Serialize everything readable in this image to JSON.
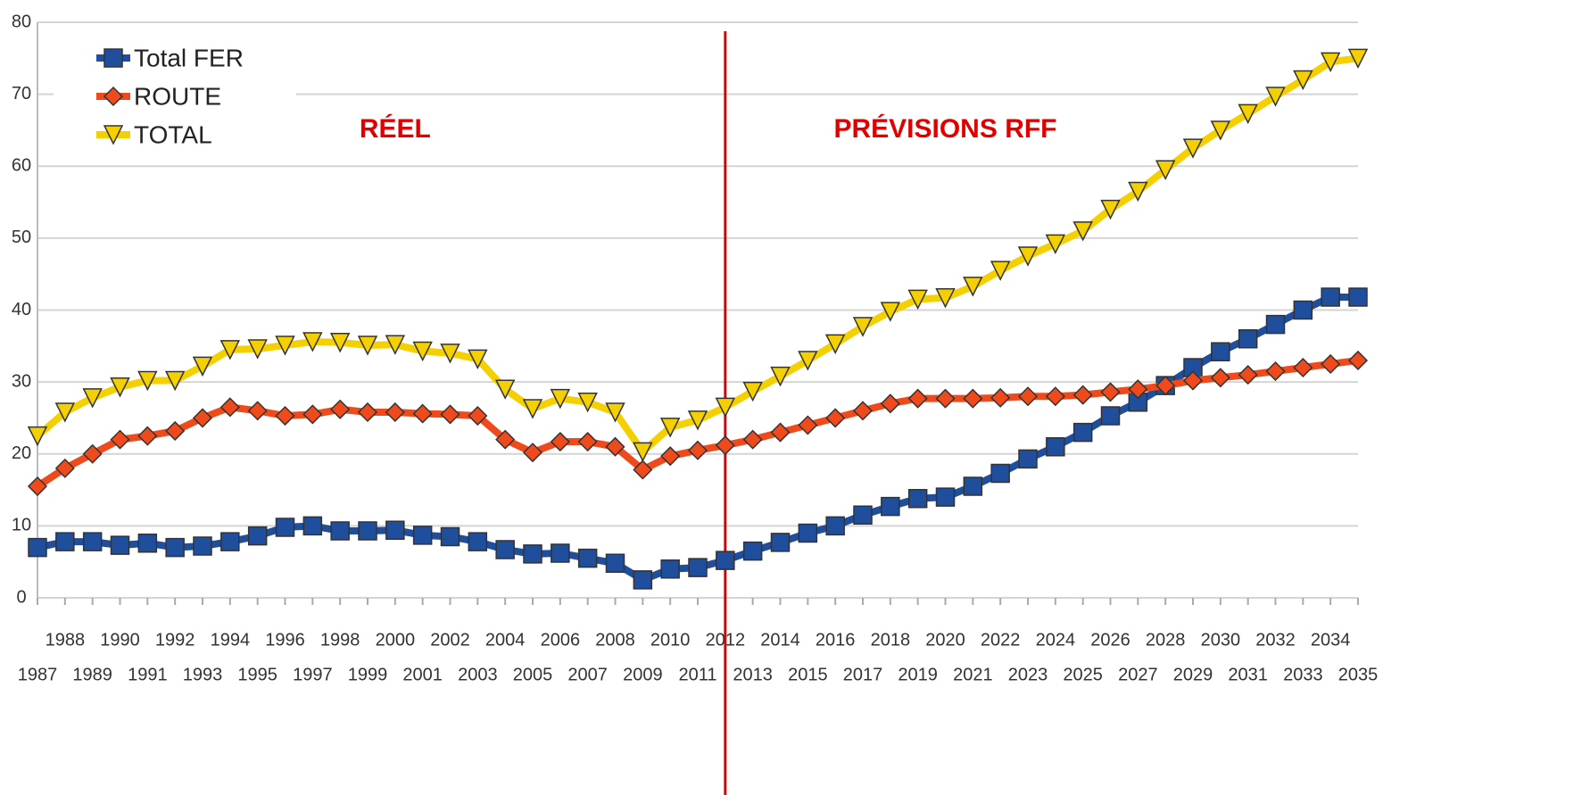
{
  "chart_data": {
    "type": "line",
    "x": [
      1987,
      1988,
      1989,
      1990,
      1991,
      1992,
      1993,
      1994,
      1995,
      1996,
      1997,
      1998,
      1999,
      2000,
      2001,
      2002,
      2003,
      2004,
      2005,
      2006,
      2007,
      2008,
      2009,
      2010,
      2011,
      2012,
      2013,
      2014,
      2015,
      2016,
      2017,
      2018,
      2019,
      2020,
      2021,
      2022,
      2023,
      2024,
      2025,
      2026,
      2027,
      2028,
      2029,
      2030,
      2031,
      2032,
      2033,
      2034,
      2035
    ],
    "xlim": [
      1987,
      2035
    ],
    "xticks": [
      1987,
      1988,
      1989,
      1990,
      1991,
      1992,
      1993,
      1994,
      1995,
      1996,
      1997,
      1998,
      1999,
      2000,
      2001,
      2002,
      2003,
      2004,
      2005,
      2006,
      2007,
      2008,
      2009,
      2010,
      2011,
      2012,
      2013,
      2014,
      2015,
      2016,
      2017,
      2018,
      2019,
      2020,
      2021,
      2022,
      2023,
      2024,
      2025,
      2026,
      2027,
      2028,
      2029,
      2030,
      2031,
      2032,
      2033,
      2034,
      2035
    ],
    "ylim": [
      0,
      80
    ],
    "yticks": [
      0,
      10,
      20,
      30,
      40,
      50,
      60,
      70,
      80
    ],
    "grid": true,
    "legend": "upper left",
    "series": [
      {
        "name": "Total FER",
        "color": "#1f4e9c",
        "marker": "square",
        "values": [
          7,
          7.8,
          7.8,
          7.3,
          7.6,
          7,
          7.2,
          7.8,
          8.6,
          9.8,
          10,
          9.3,
          9.3,
          9.4,
          8.7,
          8.5,
          7.8,
          6.7,
          6.1,
          6.2,
          5.5,
          4.8,
          2.5,
          4,
          4.2,
          5.2,
          6.5,
          7.7,
          9,
          10,
          11.5,
          12.7,
          13.8,
          14,
          15.5,
          17.3,
          19.3,
          21,
          23,
          25.3,
          27.2,
          29.5,
          32,
          34.2,
          36,
          38,
          40,
          41.8,
          41.8
        ]
      },
      {
        "name": "ROUTE",
        "color": "#ef4a1c",
        "marker": "diamond",
        "values": [
          15.5,
          18,
          20,
          22,
          22.5,
          23.2,
          25,
          26.5,
          26,
          25.3,
          25.5,
          26.2,
          25.8,
          25.8,
          25.6,
          25.5,
          25.3,
          22,
          20.2,
          21.7,
          21.7,
          21,
          17.8,
          19.7,
          20.5,
          21.2,
          22,
          23,
          24,
          25,
          26,
          27,
          27.7,
          27.7,
          27.7,
          27.8,
          28,
          28,
          28.2,
          28.6,
          29,
          29.5,
          30.2,
          30.6,
          31,
          31.5,
          32,
          32.5,
          33
        ]
      },
      {
        "name": "TOTAL",
        "color": "#f5d000",
        "marker": "triangle-down",
        "values": [
          22.5,
          25.8,
          27.8,
          29.3,
          30.2,
          30.2,
          32.2,
          34.5,
          34.6,
          35.1,
          35.6,
          35.5,
          35.1,
          35.2,
          34.3,
          34,
          33.2,
          29,
          26.3,
          27.7,
          27.2,
          25.8,
          20.3,
          23.7,
          24.7,
          26.5,
          28.7,
          30.8,
          33,
          35.3,
          37.7,
          39.8,
          41.5,
          41.7,
          43.3,
          45.5,
          47.5,
          49.2,
          51,
          54,
          56.5,
          59.5,
          62.5,
          65,
          67.3,
          69.7,
          72,
          74.5,
          75
        ]
      }
    ],
    "vline": {
      "x": 2012,
      "color": "#e00000"
    },
    "annotations": [
      {
        "text": "RÉEL",
        "x": 2000,
        "y": 65
      },
      {
        "text": "PRÉVISIONS RFF",
        "x": 2020,
        "y": 65
      }
    ]
  }
}
